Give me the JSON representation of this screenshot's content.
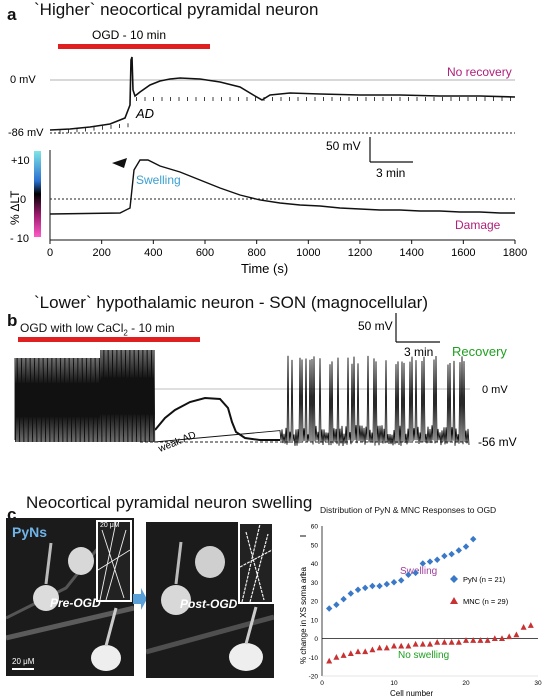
{
  "panel_a": {
    "letter": "a",
    "title": "`Higher` neocortical pyramidal neuron",
    "bar_label": "OGD - 10 min",
    "zero_mv": "0 mV",
    "rest_mv": "-86 mV",
    "no_recovery": "No recovery",
    "ad": "AD",
    "scale_mv": "50 mV",
    "scale_min": "3 min",
    "swelling": "Swelling",
    "damage": "Damage",
    "y_ticks": [
      "+10",
      "0",
      "- 10"
    ],
    "ylabel": "% ΔLT",
    "x_ticks": [
      "0",
      "200",
      "400",
      "600",
      "800",
      "1000",
      "1200",
      "1400",
      "1600",
      "1800"
    ],
    "xlabel": "Time (s)",
    "colors": {
      "bar": "#e02020",
      "no_recovery": "#b0207a",
      "swelling": "#3a9fd0",
      "damage": "#b0207a"
    }
  },
  "panel_b": {
    "letter": "b",
    "title": "`Lower` hypothalamic  neuron - SON (magnocellular)",
    "bar_label_pre": "OGD with low CaCl",
    "bar_label_sub": "2",
    "bar_label_post": " - 10 min",
    "scale_mv": "50 mV",
    "scale_min": "3 min",
    "recovery": "Recovery",
    "zero_mv": "0 mV",
    "rest_mv": "-56 mV",
    "weak_ad": "weak AD",
    "colors": {
      "recovery": "#1fa01f"
    }
  },
  "panel_c": {
    "letter": "c",
    "title": "Neocortical pyramidal neuron swelling",
    "pyns": "PyNs",
    "pre": "Pre-OGD",
    "post": "Post-OGD",
    "scale_inset": "20 μM",
    "scale_main": "20 μM",
    "chart_title": "Distribution of PyN & MNC Responses to OGD"
  },
  "chart_data": {
    "type": "scatter",
    "title": "Distribution of PyN & MNC Responses to OGD",
    "xlabel": "Cell number",
    "ylabel": "% change in XS soma area",
    "xlim": [
      0,
      30
    ],
    "ylim": [
      -20,
      60
    ],
    "x_ticks": [
      0,
      10,
      20,
      30
    ],
    "y_ticks": [
      -20,
      -10,
      0,
      10,
      20,
      30,
      40,
      50,
      60
    ],
    "annotations": {
      "swelling": "Swelling",
      "no_swelling": "No swelling"
    },
    "series": [
      {
        "name": "PyN (n = 21)",
        "color": "#3a78c8",
        "marker": "diamond",
        "x": [
          1,
          2,
          3,
          4,
          5,
          6,
          7,
          8,
          9,
          10,
          11,
          12,
          13,
          14,
          15,
          16,
          17,
          18,
          19,
          20,
          21
        ],
        "y": [
          16,
          18,
          21,
          24,
          26,
          27,
          28,
          28,
          29,
          30,
          31,
          34,
          35,
          40,
          41,
          42,
          44,
          45,
          47,
          49,
          53
        ]
      },
      {
        "name": "MNC (n = 29)",
        "color": "#c83232",
        "marker": "triangle",
        "x": [
          1,
          2,
          3,
          4,
          5,
          6,
          7,
          8,
          9,
          10,
          11,
          12,
          13,
          14,
          15,
          16,
          17,
          18,
          19,
          20,
          21,
          22,
          23,
          24,
          25,
          26,
          27,
          28,
          29
        ],
        "y": [
          -12,
          -10,
          -9,
          -8,
          -7,
          -7,
          -6,
          -5,
          -5,
          -4,
          -4,
          -4,
          -3,
          -3,
          -3,
          -2,
          -2,
          -2,
          -2,
          -1,
          -1,
          -1,
          -1,
          0,
          0,
          1,
          2,
          6,
          7
        ]
      }
    ]
  }
}
